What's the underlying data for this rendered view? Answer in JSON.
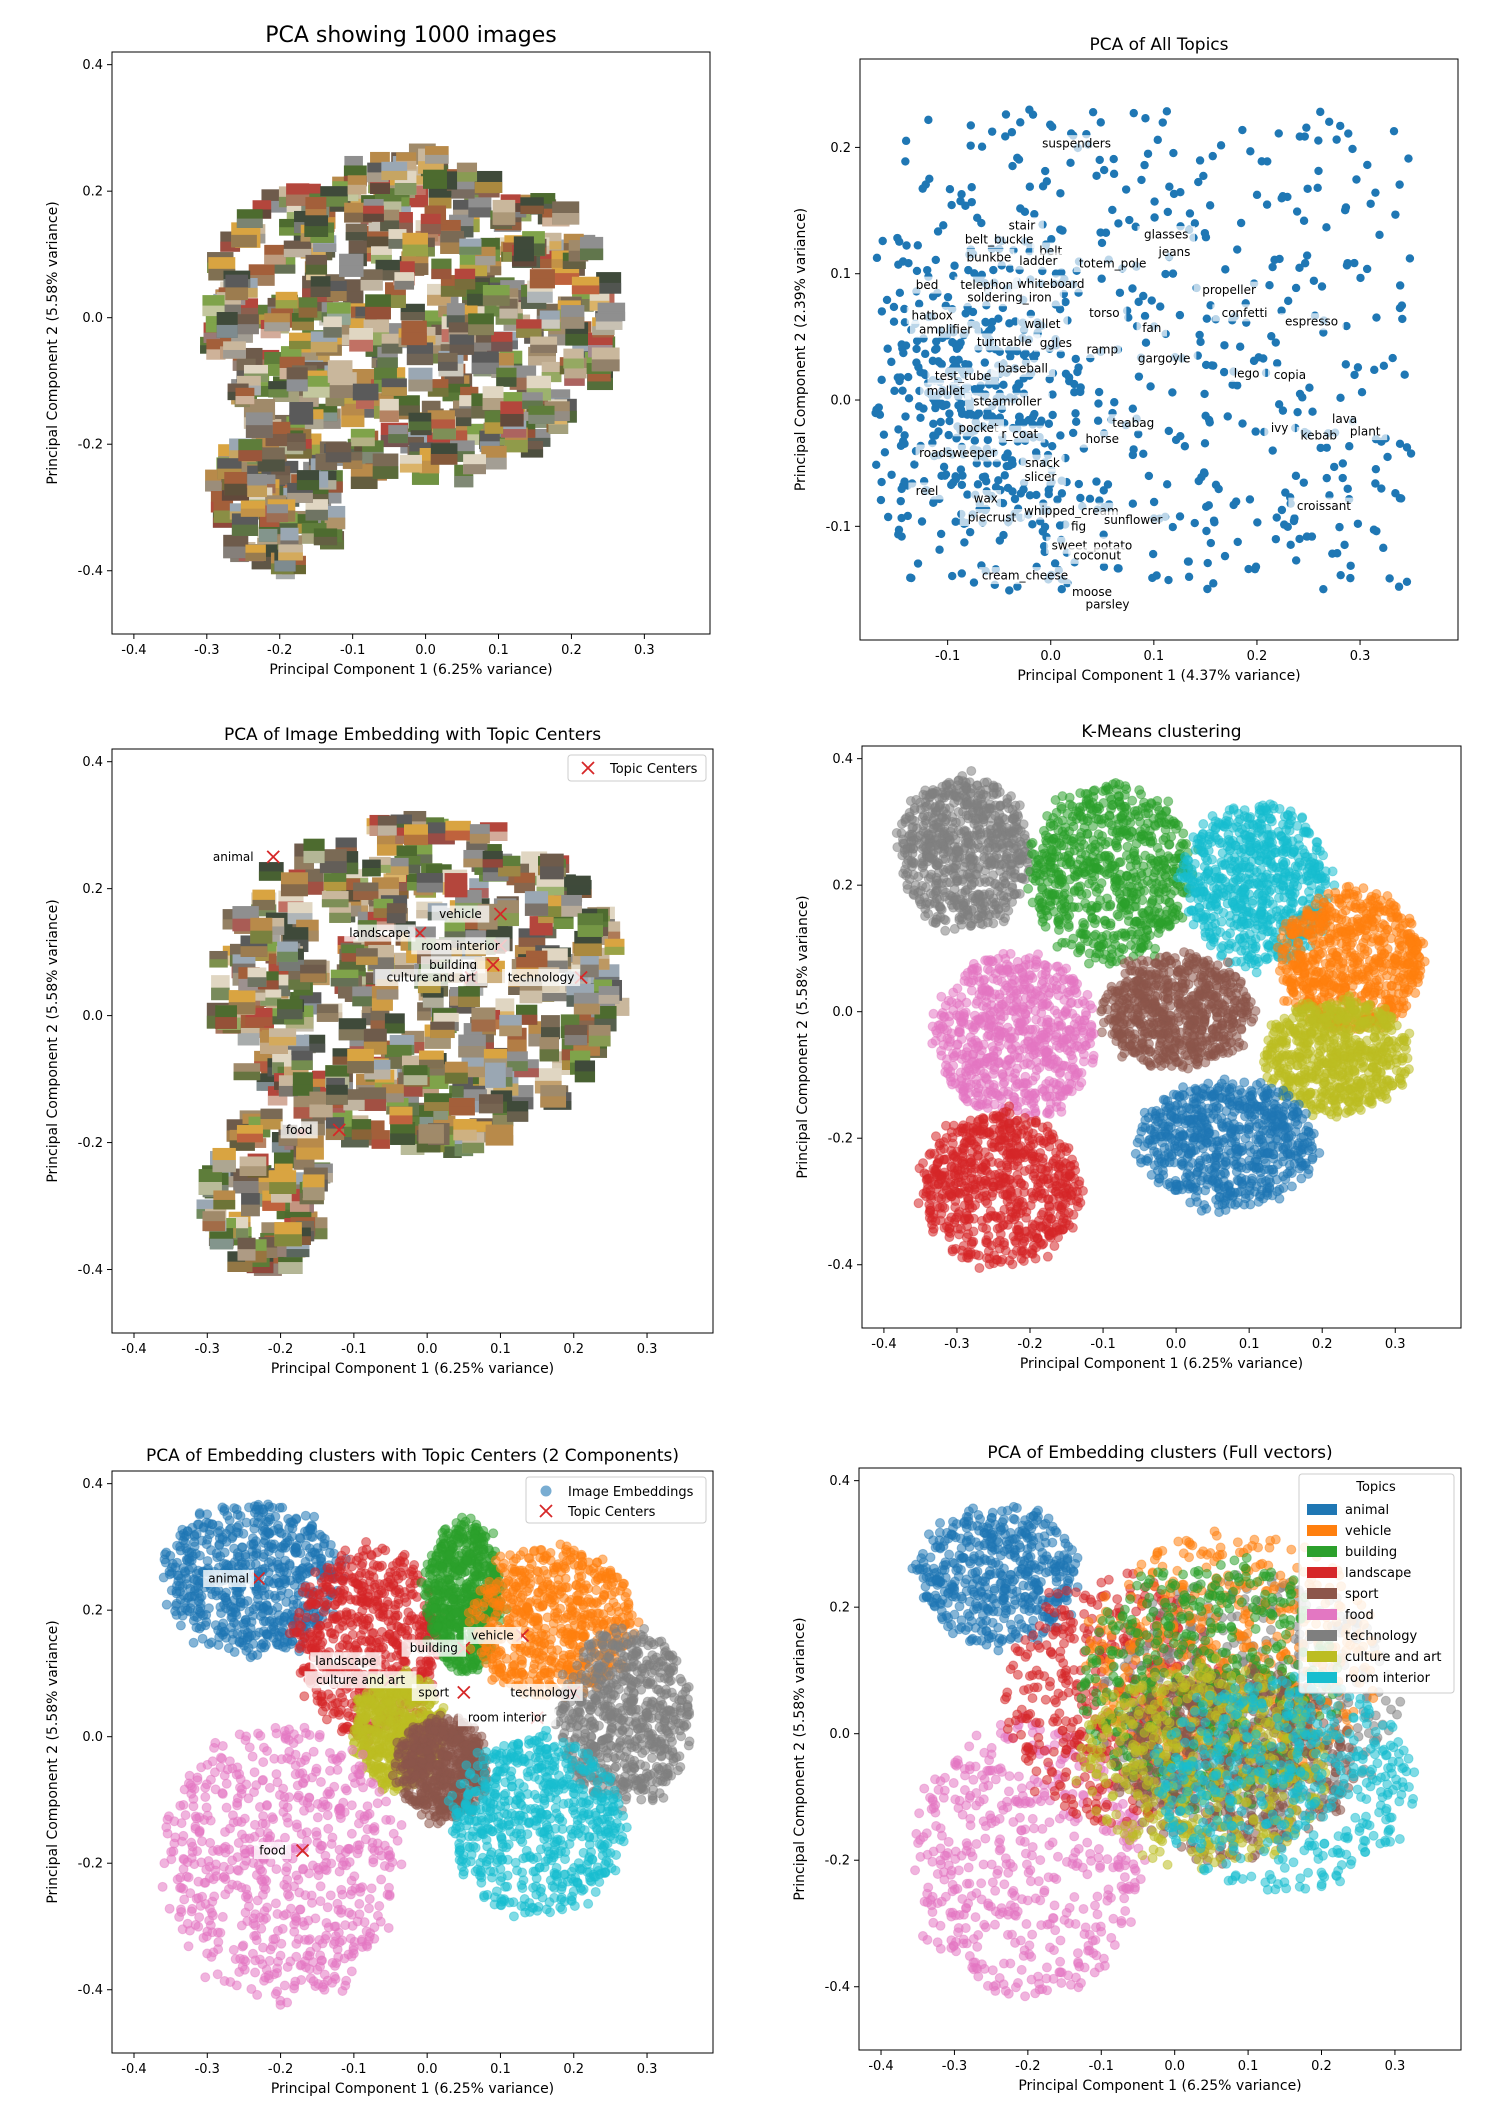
{
  "chart_data": [
    {
      "id": "p1",
      "type": "scatter",
      "title": "PCA showing 1000 images",
      "xlabel": "Principal Component 1 (6.25% variance)",
      "ylabel": "Principal Component 2 (5.58% variance)",
      "xlim": [
        -0.43,
        0.39
      ],
      "ylim": [
        -0.5,
        0.42
      ],
      "xticks": [
        -0.4,
        -0.3,
        -0.2,
        -0.1,
        0.0,
        0.1,
        0.2,
        0.3
      ],
      "yticks": [
        -0.4,
        -0.2,
        0.0,
        0.2,
        0.4
      ],
      "marker": "image-thumbnail",
      "point_count": 1000,
      "regions": [
        {
          "cx": -0.02,
          "cy": 0.0,
          "rx": 0.28,
          "ry": 0.26
        },
        {
          "cx": -0.2,
          "cy": -0.28,
          "rx": 0.09,
          "ry": 0.12
        }
      ]
    },
    {
      "id": "p2",
      "type": "scatter",
      "title": "PCA of All Topics",
      "xlabel": "Principal Component 1 (4.37% variance)",
      "ylabel": "Principal Component 2 (2.39% variance)",
      "xlim": [
        -0.185,
        0.395
      ],
      "ylim": [
        -0.19,
        0.27
      ],
      "xticks": [
        -0.1,
        0.0,
        0.1,
        0.2,
        0.3
      ],
      "yticks": [
        -0.1,
        0.0,
        0.1,
        0.2
      ],
      "colors": [
        "#1f77b4"
      ],
      "labels": [
        {
          "text": "suspenders",
          "x": 0.025,
          "y": 0.203
        },
        {
          "text": "stair",
          "x": -0.028,
          "y": 0.138
        },
        {
          "text": "glasses",
          "x": 0.112,
          "y": 0.131
        },
        {
          "text": "belt_buckle",
          "x": -0.05,
          "y": 0.127
        },
        {
          "text": "jeans",
          "x": 0.12,
          "y": 0.117
        },
        {
          "text": "belt",
          "x": 0.0,
          "y": 0.118
        },
        {
          "text": "bunkbe",
          "x": -0.06,
          "y": 0.113
        },
        {
          "text": "ladder",
          "x": -0.012,
          "y": 0.11
        },
        {
          "text": "totem_pole",
          "x": 0.06,
          "y": 0.108
        },
        {
          "text": "bed",
          "x": -0.12,
          "y": 0.091
        },
        {
          "text": "telephon",
          "x": -0.062,
          "y": 0.091
        },
        {
          "text": "whiteboard",
          "x": 0.0,
          "y": 0.092
        },
        {
          "text": "soldering_iron",
          "x": -0.04,
          "y": 0.081
        },
        {
          "text": "propeller",
          "x": 0.173,
          "y": 0.087
        },
        {
          "text": "hatbox",
          "x": -0.115,
          "y": 0.067
        },
        {
          "text": "torso",
          "x": 0.052,
          "y": 0.069
        },
        {
          "text": "confetti",
          "x": 0.188,
          "y": 0.069
        },
        {
          "text": "amplifier",
          "x": -0.102,
          "y": 0.056
        },
        {
          "text": "wallet",
          "x": -0.008,
          "y": 0.06
        },
        {
          "text": "fan",
          "x": 0.098,
          "y": 0.057
        },
        {
          "text": "espresso",
          "x": 0.253,
          "y": 0.062
        },
        {
          "text": "turntable",
          "x": -0.045,
          "y": 0.046
        },
        {
          "text": "ggles",
          "x": 0.005,
          "y": 0.045
        },
        {
          "text": "ramp",
          "x": 0.05,
          "y": 0.04
        },
        {
          "text": "gargoyle",
          "x": 0.11,
          "y": 0.033
        },
        {
          "text": "baseball",
          "x": -0.027,
          "y": 0.025
        },
        {
          "text": "test_tube",
          "x": -0.085,
          "y": 0.019
        },
        {
          "text": "lego",
          "x": 0.19,
          "y": 0.021
        },
        {
          "text": "copia",
          "x": 0.232,
          "y": 0.02
        },
        {
          "text": "mallet",
          "x": -0.102,
          "y": 0.007
        },
        {
          "text": "steamroller",
          "x": -0.042,
          "y": -0.001
        },
        {
          "text": "teabag",
          "x": 0.08,
          "y": -0.018
        },
        {
          "text": "lava",
          "x": 0.285,
          "y": -0.015
        },
        {
          "text": "pocket",
          "x": -0.07,
          "y": -0.022
        },
        {
          "text": "r_coat",
          "x": -0.03,
          "y": -0.027
        },
        {
          "text": "ivy",
          "x": 0.222,
          "y": -0.022
        },
        {
          "text": "kebab",
          "x": 0.26,
          "y": -0.028
        },
        {
          "text": "plant",
          "x": 0.305,
          "y": -0.025
        },
        {
          "text": "horse",
          "x": 0.05,
          "y": -0.031
        },
        {
          "text": "roadsweeper",
          "x": -0.09,
          "y": -0.042
        },
        {
          "text": "snack",
          "x": -0.008,
          "y": -0.05
        },
        {
          "text": "slicer",
          "x": -0.01,
          "y": -0.061
        },
        {
          "text": "reel",
          "x": -0.12,
          "y": -0.072
        },
        {
          "text": "wax",
          "x": -0.063,
          "y": -0.078
        },
        {
          "text": "croissant",
          "x": 0.265,
          "y": -0.084
        },
        {
          "text": "whipped_cream",
          "x": 0.02,
          "y": -0.088
        },
        {
          "text": "piecrust",
          "x": -0.057,
          "y": -0.093
        },
        {
          "text": "fig",
          "x": 0.027,
          "y": -0.1
        },
        {
          "text": "sunflower",
          "x": 0.08,
          "y": -0.095
        },
        {
          "text": "sweet_potato",
          "x": 0.04,
          "y": -0.115
        },
        {
          "text": "coconut",
          "x": 0.045,
          "y": -0.123
        },
        {
          "text": "cream_cheese",
          "x": -0.025,
          "y": -0.139
        },
        {
          "text": "moose",
          "x": 0.04,
          "y": -0.152
        },
        {
          "text": "parsley",
          "x": 0.055,
          "y": -0.162
        }
      ]
    },
    {
      "id": "p3",
      "type": "scatter",
      "title": "PCA of Image Embedding with Topic Centers",
      "xlabel": "Principal Component 1 (6.25% variance)",
      "ylabel": "Principal Component 2 (5.58% variance)",
      "xlim": [
        -0.43,
        0.39
      ],
      "ylim": [
        -0.5,
        0.42
      ],
      "xticks": [
        -0.4,
        -0.3,
        -0.2,
        -0.1,
        0.0,
        0.1,
        0.2,
        0.3
      ],
      "yticks": [
        -0.4,
        -0.2,
        0.0,
        0.2,
        0.4
      ],
      "marker": "image-thumbnail",
      "legend": {
        "entries": [
          "Topic Centers"
        ],
        "placement": "top-right"
      },
      "regions": [
        {
          "cx": -0.01,
          "cy": 0.05,
          "rx": 0.28,
          "ry": 0.26
        },
        {
          "cx": -0.22,
          "cy": -0.28,
          "rx": 0.08,
          "ry": 0.12
        }
      ],
      "centers": [
        {
          "name": "animal",
          "x": -0.21,
          "y": 0.25
        },
        {
          "name": "vehicle",
          "x": 0.1,
          "y": 0.16
        },
        {
          "name": "landscape",
          "x": -0.01,
          "y": 0.13
        },
        {
          "name": "room interior",
          "x": 0.1,
          "y": 0.11
        },
        {
          "name": "building",
          "x": 0.09,
          "y": 0.08
        },
        {
          "name": "culture and art",
          "x": 0.06,
          "y": 0.06
        },
        {
          "name": "technology",
          "x": 0.21,
          "y": 0.06
        },
        {
          "name": "food",
          "x": -0.12,
          "y": -0.18
        }
      ]
    },
    {
      "id": "p4",
      "type": "scatter",
      "title": "K-Means clustering",
      "xlabel": "Principal Component 1 (6.25% variance)",
      "ylabel": "Principal Component 2 (5.58% variance)",
      "xlim": [
        -0.43,
        0.39
      ],
      "ylim": [
        -0.5,
        0.42
      ],
      "xticks": [
        -0.4,
        -0.3,
        -0.2,
        -0.1,
        0.0,
        0.1,
        0.2,
        0.3
      ],
      "yticks": [
        -0.4,
        -0.2,
        0.0,
        0.2,
        0.4
      ],
      "clusters": [
        {
          "color": "#7f7f7f",
          "cx": -0.29,
          "cy": 0.25,
          "rx": 0.09,
          "ry": 0.12
        },
        {
          "color": "#2ca02c",
          "cx": -0.09,
          "cy": 0.22,
          "rx": 0.11,
          "ry": 0.14
        },
        {
          "color": "#17becf",
          "cx": 0.11,
          "cy": 0.2,
          "rx": 0.1,
          "ry": 0.13
        },
        {
          "color": "#ff7f0e",
          "cx": 0.24,
          "cy": 0.08,
          "rx": 0.1,
          "ry": 0.11
        },
        {
          "color": "#8c564b",
          "cx": 0.0,
          "cy": 0.0,
          "rx": 0.1,
          "ry": 0.09
        },
        {
          "color": "#e377c2",
          "cx": -0.22,
          "cy": -0.04,
          "rx": 0.11,
          "ry": 0.13
        },
        {
          "color": "#bcbd22",
          "cx": 0.22,
          "cy": -0.07,
          "rx": 0.1,
          "ry": 0.09
        },
        {
          "color": "#1f77b4",
          "cx": 0.07,
          "cy": -0.21,
          "rx": 0.12,
          "ry": 0.1
        },
        {
          "color": "#d62728",
          "cx": -0.24,
          "cy": -0.28,
          "rx": 0.11,
          "ry": 0.12
        }
      ]
    },
    {
      "id": "p5",
      "type": "scatter",
      "title": "PCA of Embedding clusters with Topic Centers (2 Components)",
      "xlabel": "Principal Component 1 (6.25% variance)",
      "ylabel": "Principal Component 2 (5.58% variance)",
      "xlim": [
        -0.43,
        0.39
      ],
      "ylim": [
        -0.5,
        0.42
      ],
      "xticks": [
        -0.4,
        -0.3,
        -0.2,
        -0.1,
        0.0,
        0.1,
        0.2,
        0.3
      ],
      "yticks": [
        -0.4,
        -0.2,
        0.0,
        0.2,
        0.4
      ],
      "legend": {
        "entries": [
          "Image Embeddings",
          "Topic Centers"
        ],
        "placement": "top-right"
      },
      "clusters": [
        {
          "color": "#1f77b4",
          "cx": -0.24,
          "cy": 0.25,
          "rx": 0.12,
          "ry": 0.12
        },
        {
          "color": "#d62728",
          "cx": -0.08,
          "cy": 0.15,
          "rx": 0.1,
          "ry": 0.15
        },
        {
          "color": "#2ca02c",
          "cx": 0.05,
          "cy": 0.22,
          "rx": 0.05,
          "ry": 0.12
        },
        {
          "color": "#ff7f0e",
          "cx": 0.17,
          "cy": 0.18,
          "rx": 0.11,
          "ry": 0.12
        },
        {
          "color": "#7f7f7f",
          "cx": 0.27,
          "cy": 0.03,
          "rx": 0.09,
          "ry": 0.14
        },
        {
          "color": "#bcbd22",
          "cx": -0.04,
          "cy": 0.01,
          "rx": 0.06,
          "ry": 0.09
        },
        {
          "color": "#8c564b",
          "cx": 0.02,
          "cy": -0.05,
          "rx": 0.06,
          "ry": 0.08
        },
        {
          "color": "#17becf",
          "cx": 0.15,
          "cy": -0.14,
          "rx": 0.12,
          "ry": 0.14
        },
        {
          "color": "#e377c2",
          "cx": -0.2,
          "cy": -0.2,
          "rx": 0.16,
          "ry": 0.22
        }
      ],
      "centers": [
        {
          "name": "animal",
          "x": -0.23,
          "y": 0.25
        },
        {
          "name": "vehicle",
          "x": 0.13,
          "y": 0.16
        },
        {
          "name": "building",
          "x": 0.05,
          "y": 0.14
        },
        {
          "name": "landscape",
          "x": -0.07,
          "y": 0.12
        },
        {
          "name": "culture and art",
          "x": -0.05,
          "y": 0.09
        },
        {
          "name": "sport",
          "x": 0.05,
          "y": 0.07
        },
        {
          "name": "technology",
          "x": 0.2,
          "y": 0.07
        },
        {
          "name": "room interior",
          "x": 0.15,
          "y": 0.03
        },
        {
          "name": "food",
          "x": -0.17,
          "y": -0.18
        }
      ]
    },
    {
      "id": "p6",
      "type": "scatter",
      "title": "PCA of Embedding clusters (Full vectors)",
      "xlabel": "Principal Component 1 (6.25% variance)",
      "ylabel": "Principal Component 2 (5.58% variance)",
      "xlim": [
        -0.43,
        0.39
      ],
      "ylim": [
        -0.5,
        0.42
      ],
      "xticks": [
        -0.4,
        -0.3,
        -0.2,
        -0.1,
        0.0,
        0.1,
        0.2,
        0.3
      ],
      "yticks": [
        -0.4,
        -0.2,
        0.0,
        0.2,
        0.4
      ],
      "legend": {
        "title": "Topics",
        "placement": "top-right",
        "entries": [
          {
            "name": "animal",
            "color": "#1f77b4"
          },
          {
            "name": "vehicle",
            "color": "#ff7f0e"
          },
          {
            "name": "building",
            "color": "#2ca02c"
          },
          {
            "name": "landscape",
            "color": "#d62728"
          },
          {
            "name": "sport",
            "color": "#8c564b"
          },
          {
            "name": "food",
            "color": "#e377c2"
          },
          {
            "name": "technology",
            "color": "#7f7f7f"
          },
          {
            "name": "culture and art",
            "color": "#bcbd22"
          },
          {
            "name": "room interior",
            "color": "#17becf"
          }
        ]
      },
      "clusters": [
        {
          "color": "#1f77b4",
          "cx": -0.24,
          "cy": 0.25,
          "rx": 0.11,
          "ry": 0.11
        },
        {
          "color": "#e377c2",
          "cx": -0.2,
          "cy": -0.2,
          "rx": 0.16,
          "ry": 0.22
        },
        {
          "color": "#d62728",
          "cx": -0.08,
          "cy": 0.05,
          "rx": 0.15,
          "ry": 0.2
        },
        {
          "color": "#7f7f7f",
          "cx": 0.1,
          "cy": 0.05,
          "rx": 0.2,
          "ry": 0.2
        },
        {
          "color": "#ff7f0e",
          "cx": 0.08,
          "cy": 0.12,
          "rx": 0.2,
          "ry": 0.2
        },
        {
          "color": "#2ca02c",
          "cx": 0.05,
          "cy": 0.08,
          "rx": 0.18,
          "ry": 0.2
        },
        {
          "color": "#8c564b",
          "cx": 0.08,
          "cy": -0.05,
          "rx": 0.16,
          "ry": 0.15
        },
        {
          "color": "#bcbd22",
          "cx": 0.04,
          "cy": -0.05,
          "rx": 0.17,
          "ry": 0.16
        },
        {
          "color": "#17becf",
          "cx": 0.15,
          "cy": -0.08,
          "rx": 0.18,
          "ry": 0.17
        }
      ]
    }
  ]
}
